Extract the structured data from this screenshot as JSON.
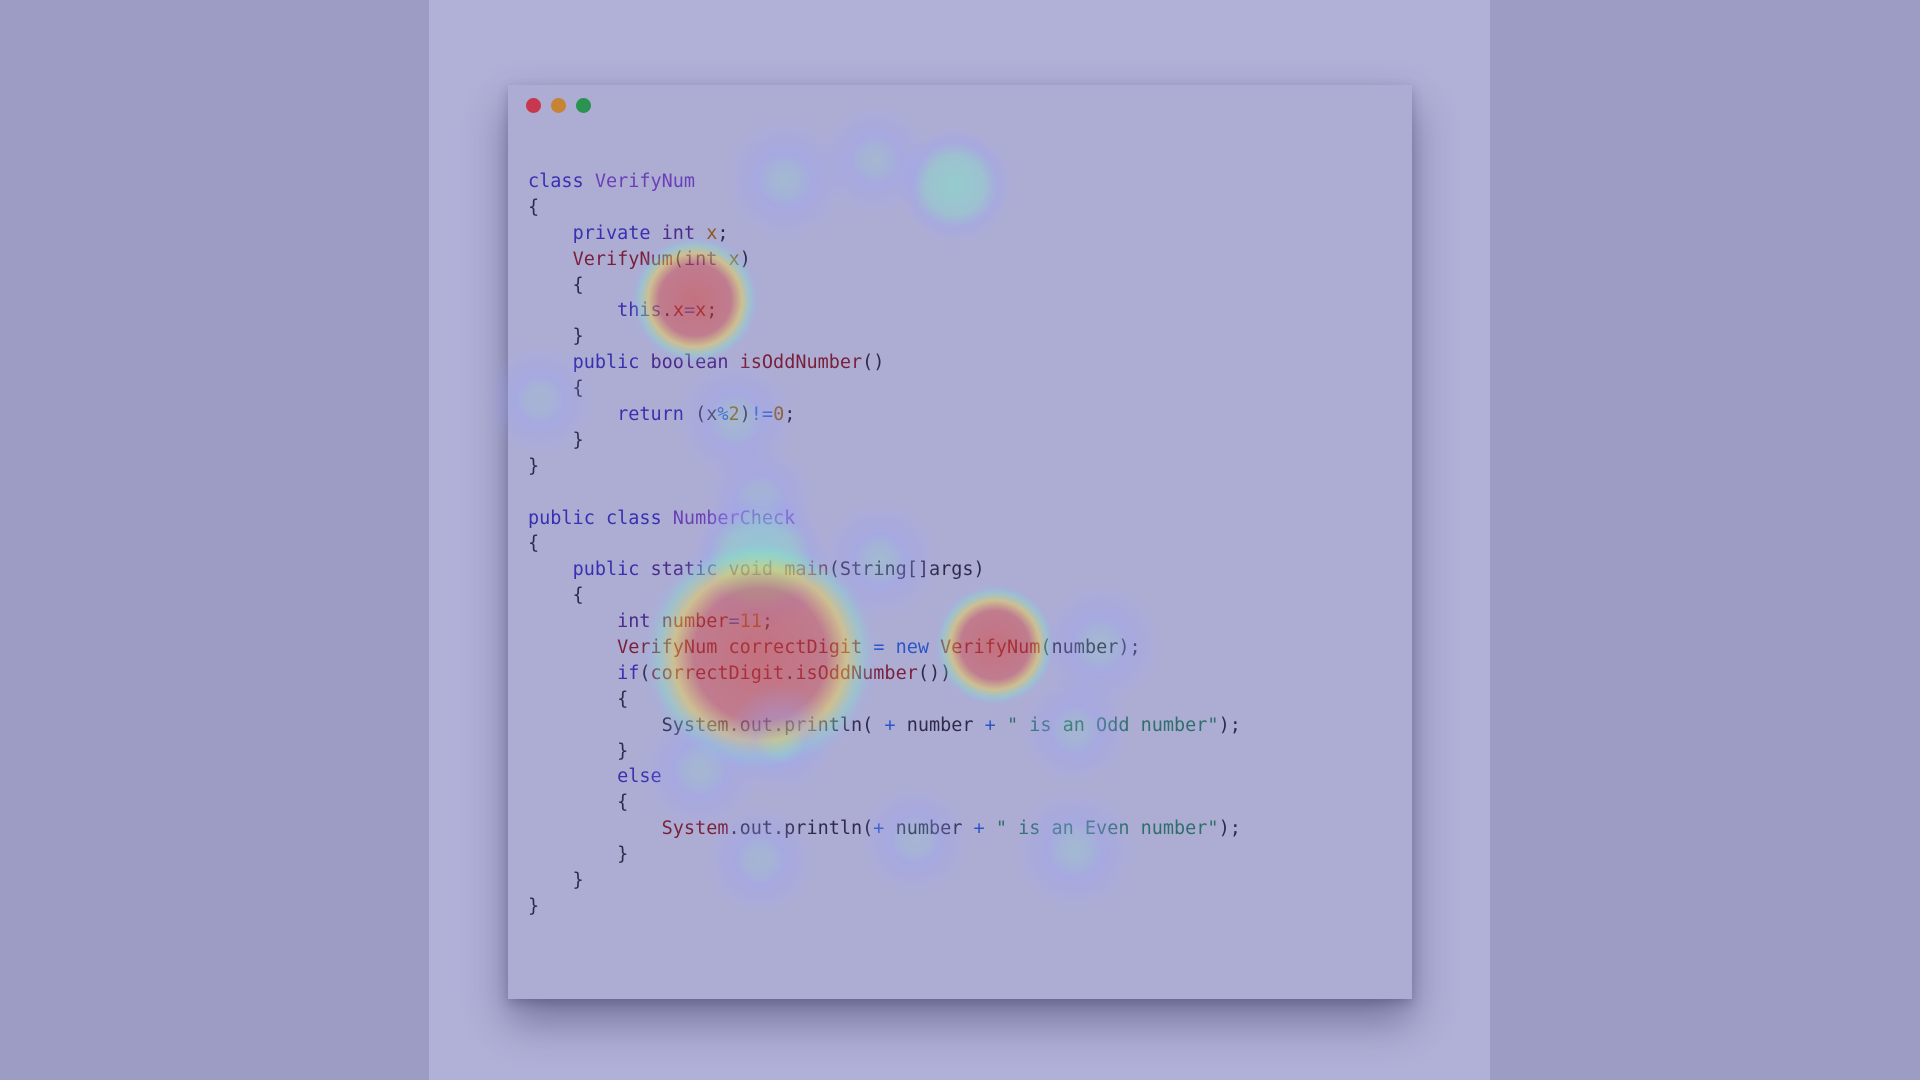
{
  "window": {
    "buttons": [
      {
        "name": "close",
        "color": "#c7384e"
      },
      {
        "name": "minimize",
        "color": "#c78435"
      },
      {
        "name": "maximize",
        "color": "#2a9352"
      }
    ]
  },
  "code_lines": [
    [
      [
        "kw",
        "class "
      ],
      [
        "cls",
        "VerifyNum"
      ]
    ],
    [
      [
        "pl",
        "{"
      ]
    ],
    [
      [
        "pl",
        "    "
      ],
      [
        "kw",
        "private "
      ],
      [
        "ty",
        "int "
      ],
      [
        "num",
        "x"
      ],
      [
        "pl",
        ";"
      ]
    ],
    [
      [
        "pl",
        "    "
      ],
      [
        "fn",
        "VerifyNum"
      ],
      [
        "pl",
        "("
      ],
      [
        "ty",
        "int "
      ],
      [
        "num",
        "x"
      ],
      [
        "pl",
        ")"
      ]
    ],
    [
      [
        "pl",
        "    {"
      ]
    ],
    [
      [
        "pl",
        "        "
      ],
      [
        "kw",
        "this"
      ],
      [
        "pl",
        "."
      ],
      [
        "fn",
        "x"
      ],
      [
        "op",
        "="
      ],
      [
        "fn",
        "x"
      ],
      [
        "pl",
        ";"
      ]
    ],
    [
      [
        "pl",
        "    }"
      ]
    ],
    [
      [
        "pl",
        "    "
      ],
      [
        "kw",
        "public "
      ],
      [
        "ty",
        "boolean "
      ],
      [
        "fn",
        "isOddNumber"
      ],
      [
        "pl",
        "()"
      ]
    ],
    [
      [
        "pl",
        "    {"
      ]
    ],
    [
      [
        "pl",
        "        "
      ],
      [
        "kw",
        "return "
      ],
      [
        "pl",
        "(x"
      ],
      [
        "op",
        "%"
      ],
      [
        "num",
        "2"
      ],
      [
        "pl",
        ")"
      ],
      [
        "op",
        "!="
      ],
      [
        "num",
        "0"
      ],
      [
        "pl",
        ";"
      ]
    ],
    [
      [
        "pl",
        "    }"
      ]
    ],
    [
      [
        "pl",
        "}"
      ]
    ],
    [
      [
        "pl",
        ""
      ]
    ],
    [
      [
        "kw",
        "public class "
      ],
      [
        "cls",
        "NumberCheck"
      ]
    ],
    [
      [
        "pl",
        "{"
      ]
    ],
    [
      [
        "pl",
        "    "
      ],
      [
        "kw",
        "public "
      ],
      [
        "ty",
        "static "
      ],
      [
        "ty",
        "void "
      ],
      [
        "fn",
        "main"
      ],
      [
        "pl",
        "(String[]args)"
      ]
    ],
    [
      [
        "pl",
        "    {"
      ]
    ],
    [
      [
        "pl",
        "        "
      ],
      [
        "ty",
        "int "
      ],
      [
        "fn",
        "number"
      ],
      [
        "op",
        "="
      ],
      [
        "num",
        "11"
      ],
      [
        "pl",
        ";"
      ]
    ],
    [
      [
        "pl",
        "        "
      ],
      [
        "fn",
        "VerifyNum "
      ],
      [
        "fn",
        "correctDigit "
      ],
      [
        "op",
        "= "
      ],
      [
        "op",
        "new "
      ],
      [
        "fn",
        "VerifyNum"
      ],
      [
        "pl",
        "(number);"
      ]
    ],
    [
      [
        "pl",
        "        "
      ],
      [
        "kw",
        "if"
      ],
      [
        "pl",
        "("
      ],
      [
        "fn",
        "correctDigit"
      ],
      [
        "pl",
        "."
      ],
      [
        "fn",
        "isOddNumber"
      ],
      [
        "pl",
        "())"
      ]
    ],
    [
      [
        "pl",
        "        {"
      ]
    ],
    [
      [
        "pl",
        "            "
      ],
      [
        "pl",
        "System.out.println( "
      ],
      [
        "op",
        "+ "
      ],
      [
        "pl",
        "number "
      ],
      [
        "op",
        "+ "
      ],
      [
        "str",
        "\" is an Odd number\""
      ],
      [
        "pl",
        ");"
      ]
    ],
    [
      [
        "pl",
        "        }"
      ]
    ],
    [
      [
        "pl",
        "        "
      ],
      [
        "kw",
        "else"
      ]
    ],
    [
      [
        "pl",
        "        {"
      ]
    ],
    [
      [
        "pl",
        "            "
      ],
      [
        "fn",
        "System"
      ],
      [
        "pl",
        ".out.println("
      ],
      [
        "op",
        "+ "
      ],
      [
        "pl",
        "number "
      ],
      [
        "op",
        "+ "
      ],
      [
        "str",
        "\" is an Even number\""
      ],
      [
        "pl",
        ");"
      ]
    ],
    [
      [
        "pl",
        "        }"
      ]
    ],
    [
      [
        "pl",
        "    }"
      ]
    ],
    [
      [
        "pl",
        "}"
      ]
    ]
  ],
  "heatmap": {
    "palette": {
      "hot": "#d6403a",
      "warm": "#f5d640",
      "mid": "#7fe6c8",
      "cool": "#9aa0f6"
    },
    "spots": [
      {
        "x": 785,
        "y": 180,
        "r": 62,
        "level": 0.28
      },
      {
        "x": 955,
        "y": 185,
        "r": 58,
        "level": 0.48
      },
      {
        "x": 875,
        "y": 160,
        "r": 55,
        "level": 0.18
      },
      {
        "x": 695,
        "y": 300,
        "r": 65,
        "level": 0.95
      },
      {
        "x": 540,
        "y": 400,
        "r": 55,
        "level": 0.12
      },
      {
        "x": 735,
        "y": 420,
        "r": 60,
        "level": 0.22
      },
      {
        "x": 760,
        "y": 500,
        "r": 55,
        "level": 0.16
      },
      {
        "x": 760,
        "y": 560,
        "r": 70,
        "level": 0.42
      },
      {
        "x": 880,
        "y": 560,
        "r": 60,
        "level": 0.3
      },
      {
        "x": 760,
        "y": 655,
        "r": 120,
        "level": 1.0
      },
      {
        "x": 995,
        "y": 645,
        "r": 62,
        "level": 0.95
      },
      {
        "x": 1100,
        "y": 645,
        "r": 62,
        "level": 0.25
      },
      {
        "x": 1075,
        "y": 730,
        "r": 55,
        "level": 0.18
      },
      {
        "x": 700,
        "y": 770,
        "r": 60,
        "level": 0.22
      },
      {
        "x": 780,
        "y": 740,
        "r": 55,
        "level": 0.18
      },
      {
        "x": 760,
        "y": 860,
        "r": 55,
        "level": 0.16
      },
      {
        "x": 915,
        "y": 840,
        "r": 55,
        "level": 0.14
      },
      {
        "x": 1075,
        "y": 850,
        "r": 62,
        "level": 0.3
      }
    ]
  }
}
